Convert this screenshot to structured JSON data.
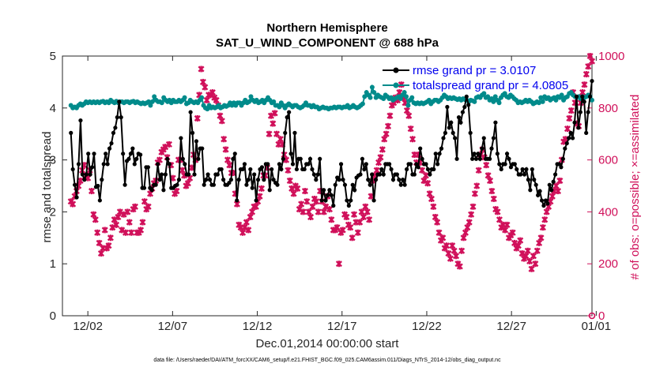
{
  "chart_data": {
    "type": "line",
    "title": "Northern Hemisphere",
    "subtitle": "SAT_U_WIND_COMPONENT @ 688 hPa",
    "xlabel": "Dec.01,2014 00:00:00 start",
    "ylabel": "rmse and totalspread",
    "ylabel_right": "# of obs: o=possible; ×=assimilated",
    "footer": "data file: /Users/raeder/DAI/ATM_forcXX/CAM6_setup/f.e21.FHIST_BGC.f09_025.CAM6assim.011/Diags_NTrS_2014-12/obs_diag_output.nc",
    "xlim": [
      0.5,
      31.75
    ],
    "ylim": [
      0,
      5
    ],
    "ylim_right": [
      0,
      1000
    ],
    "x_ticks": [
      2,
      7,
      12,
      17,
      22,
      27,
      32
    ],
    "x_tick_labels": [
      "12/02",
      "12/07",
      "12/12",
      "12/17",
      "12/22",
      "12/27",
      "01/01"
    ],
    "y_ticks": [
      0,
      1,
      2,
      3,
      4,
      5
    ],
    "y_tick_labels": [
      "0",
      "1",
      "2",
      "3",
      "4",
      "5"
    ],
    "y_ticks_right": [
      0,
      200,
      400,
      600,
      800,
      1000
    ],
    "y_tick_labels_right": [
      "0",
      "200",
      "400",
      "600",
      "800",
      "1000"
    ],
    "colors": {
      "rmse": "#000000",
      "spread": "#008b8b",
      "obs": "#d0105a",
      "right_axis": "#d0105a",
      "legend_text": "#0000ee"
    },
    "series": [
      {
        "name": "rmse grand pr = 3.0107",
        "axis": "left",
        "values": [
          3.52,
          2.82,
          2.52,
          2.28,
          2.92,
          3.76,
          2.72,
          2.62,
          2.72,
          3.12,
          2.72,
          2.86,
          3.12,
          2.48,
          2.5,
          2.22,
          2.62,
          2.92,
          3.12,
          2.92,
          3.22,
          3.32,
          3.52,
          3.62,
          3.82,
          4.12,
          3.82,
          3.12,
          2.52,
          2.98,
          3.02,
          3.12,
          3.22,
          2.92,
          3.02,
          3.12,
          3.1,
          2.46,
          2.46,
          2.86,
          2.86,
          2.46,
          2.42,
          2.52,
          2.52,
          2.92,
          2.62,
          2.72,
          2.42,
          2.72,
          3.02,
          2.92,
          2.46,
          2.46,
          2.5,
          2.52,
          2.62,
          3.42,
          3.02,
          2.92,
          2.72,
          2.72,
          3.92,
          3.52,
          2.72,
          3.36,
          3.02,
          3.22,
          3.22,
          2.52,
          2.62,
          2.72,
          2.62,
          2.52,
          2.52,
          2.72,
          2.72,
          2.82,
          2.82,
          2.62,
          2.52,
          2.52,
          2.56,
          2.62,
          3.02,
          3.12,
          2.22,
          2.62,
          2.82,
          2.82,
          2.92,
          2.52,
          2.62,
          2.82,
          2.46,
          2.72,
          2.22,
          2.62,
          2.82,
          2.86,
          2.62,
          2.92,
          2.92,
          2.42,
          2.82,
          2.62,
          2.56,
          2.52,
          2.92,
          2.82,
          3.02,
          3.52,
          3.82,
          3.92,
          3.12,
          2.92,
          3.52,
          2.82,
          3.02,
          3.02,
          2.82,
          2.82,
          2.92,
          2.92,
          3.02,
          2.82,
          2.72,
          2.62,
          2.72,
          3.02,
          2.22,
          2.42,
          2.22,
          2.32,
          2.42,
          2.32,
          2.12,
          2.52,
          2.66,
          2.62,
          2.92,
          2.62,
          2.52,
          2.22,
          2.12,
          2.22,
          2.52,
          2.42,
          2.66,
          2.7,
          2.72,
          3.02,
          2.82,
          2.92,
          2.62,
          2.52,
          2.72,
          2.22,
          2.62,
          2.72,
          2.72,
          2.82,
          2.72,
          2.92,
          2.92,
          2.92,
          2.82,
          2.62,
          2.72,
          2.72,
          2.62,
          2.52,
          2.62,
          2.52,
          2.82,
          2.92,
          2.92,
          2.72,
          2.72,
          2.92,
          2.86,
          3.22,
          3.02,
          2.92,
          2.92,
          2.82,
          2.72,
          2.82,
          2.82,
          3.12,
          2.92,
          3.12,
          3.22,
          3.42,
          3.52,
          4.02,
          3.62,
          3.72,
          3.52,
          3.42,
          3.02,
          3.82,
          3.72,
          3.92,
          4.02,
          4.22,
          4.06,
          3.52,
          3.02,
          3.12,
          3.02,
          3.12,
          3.02,
          3.22,
          3.42,
          3.02,
          3.02,
          3.02,
          3.22,
          3.42,
          3.72,
          3.12,
          2.92,
          2.82,
          2.92,
          2.92,
          3.12,
          3.02,
          2.86,
          2.92,
          2.92,
          2.82,
          2.72,
          2.72,
          2.82,
          2.72,
          2.82,
          2.62,
          2.42,
          2.82,
          2.62,
          2.52,
          2.32,
          2.4,
          2.22,
          2.12,
          2.22,
          2.16,
          2.52,
          2.42,
          2.58,
          2.72,
          2.92,
          2.92,
          2.86,
          3.02,
          3.22,
          3.32,
          3.42,
          3.52,
          3.42,
          3.72,
          4.22,
          3.62,
          3.92,
          4.22,
          4.12,
          3.52,
          3.92,
          4.22,
          4.52
        ]
      },
      {
        "name": "totalspread grand pr = 4.0805",
        "axis": "left",
        "values": [
          4.05,
          4.0,
          4.02,
          4.0,
          4.05,
          4.08,
          4.05,
          4.08,
          4.12,
          4.1,
          4.12,
          4.1,
          4.12,
          4.1,
          4.12,
          4.1,
          4.12,
          4.13,
          4.1,
          4.12,
          4.1,
          4.15,
          4.12,
          4.1,
          4.13,
          4.1,
          4.12,
          4.12,
          4.1,
          4.12,
          4.12,
          4.1,
          4.12,
          4.13,
          4.1,
          4.12,
          4.1,
          4.08,
          4.1,
          4.08,
          4.1,
          4.12,
          4.05,
          4.12,
          4.22,
          4.15,
          4.12,
          4.12,
          4.1,
          4.2,
          4.15,
          4.12,
          4.15,
          4.1,
          4.15,
          4.12,
          4.12,
          4.15,
          4.12,
          4.15,
          4.2,
          4.08,
          4.1,
          4.15,
          4.12,
          4.1,
          4.12,
          4.1,
          4.15,
          4.2,
          4.05,
          4.0,
          3.98,
          4.05,
          4.0,
          4.02,
          4.0,
          4.02,
          4.05,
          4.0,
          4.02,
          4.05,
          4.03,
          4.05,
          4.1,
          4.05,
          4.1,
          4.05,
          4.1,
          4.1,
          4.05,
          4.1,
          4.15,
          4.1,
          4.12,
          4.22,
          4.15,
          4.12,
          4.15,
          4.1,
          4.12,
          4.15,
          4.1,
          4.15,
          4.2,
          4.15,
          4.1,
          4.12,
          4.05,
          4.05,
          4.02,
          4.1,
          4.05,
          4.0,
          4.05,
          4.08,
          4.05,
          4.02,
          4.05,
          4.05,
          4.02,
          4.0,
          4.02,
          4.05,
          4.1,
          4.05,
          4.05,
          4.02,
          4.05,
          4.02,
          4.02,
          3.98,
          4.0,
          4.02,
          4.0,
          4.0,
          3.98,
          4.0,
          4.0,
          4.02,
          4.0,
          4.02,
          4.02,
          4.0,
          4.02,
          4.02,
          4.05,
          4.0,
          4.02,
          4.05,
          4.02,
          4.0,
          4.02,
          4.05,
          4.08,
          4.22,
          4.3,
          4.25,
          4.2,
          4.4,
          4.3,
          4.2,
          4.25,
          4.22,
          4.2,
          4.18,
          4.25,
          4.22,
          4.18,
          4.2,
          4.15,
          4.18,
          4.2,
          4.22,
          4.18,
          4.25,
          4.3,
          4.22,
          4.05,
          4.15,
          4.2,
          4.1,
          4.08,
          4.1,
          4.08,
          4.1,
          4.08,
          4.1,
          4.12,
          4.15,
          4.08,
          4.12,
          4.15,
          4.15,
          4.12,
          4.15,
          4.2,
          4.25,
          4.22,
          4.18,
          4.2,
          4.18,
          4.2,
          4.18,
          4.16,
          4.18,
          4.15,
          4.18,
          4.16,
          4.15,
          4.12,
          4.15,
          4.14,
          4.12,
          4.2,
          4.22,
          4.2,
          4.25,
          4.28,
          4.2,
          4.22,
          4.15,
          4.18,
          4.12,
          4.22,
          4.15,
          4.1,
          4.2,
          4.25,
          4.28,
          4.22,
          4.2,
          4.25,
          4.22,
          4.18,
          4.15,
          4.1,
          4.12,
          4.1,
          4.12,
          4.15,
          4.12,
          4.15,
          4.12,
          4.08,
          4.1,
          4.12,
          4.1,
          4.2,
          4.12,
          4.22,
          4.18,
          4.2,
          4.15,
          4.18,
          4.2,
          4.15,
          4.22,
          4.2,
          4.25,
          4.15,
          4.2,
          4.22,
          4.28,
          4.3,
          4.25,
          4.22,
          4.2,
          4.22,
          4.18,
          4.22,
          4.2,
          4.22,
          4.25,
          4.22,
          4.15
        ]
      },
      {
        "name": "# of obs assimilated",
        "axis": "right",
        "marker": "x",
        "values": [
          440,
          430,
          460,
          480,
          500,
          520,
          560,
          580,
          540,
          530,
          560,
          480,
          390,
          370,
          320,
          280,
          240,
          260,
          330,
          260,
          270,
          300,
          340,
          370,
          350,
          380,
          400,
          330,
          390,
          320,
          400,
          360,
          320,
          410,
          420,
          320,
          320,
          330,
          360,
          440,
          410,
          420,
          470,
          490,
          510,
          520,
          590,
          600,
          630,
          640,
          650,
          610,
          660,
          580,
          530,
          470,
          480,
          600,
          600,
          560,
          540,
          500,
          510,
          530,
          570,
          620,
          600,
          760,
          850,
          950,
          900,
          880,
          830,
          850,
          850,
          860,
          840,
          830,
          810,
          770,
          750,
          680,
          640,
          600,
          580,
          550,
          550,
          470,
          430,
          350,
          340,
          320,
          340,
          360,
          330,
          380,
          400,
          420,
          420,
          440,
          460,
          490,
          540,
          540,
          570,
          700,
          770,
          740,
          780,
          700,
          660,
          680,
          660,
          620,
          600,
          560,
          520,
          490,
          470,
          500,
          490,
          410,
          430,
          400,
          480,
          440,
          400,
          380,
          420,
          450,
          440,
          400,
          480,
          440,
          400,
          420,
          460,
          410,
          370,
          330,
          330,
          340,
          200,
          320,
          330,
          390,
          380,
          350,
          340,
          300,
          390,
          360,
          320,
          360,
          400,
          380,
          420,
          400,
          370,
          460,
          520,
          540,
          560,
          590,
          610,
          640,
          680,
          700,
          730,
          770,
          810,
          820,
          840,
          830,
          860,
          890,
          840,
          820,
          790,
          770,
          720,
          680,
          620,
          590,
          620,
          590,
          560,
          520,
          540,
          510,
          470,
          450,
          420,
          380,
          360,
          320,
          290,
          300,
          260,
          270,
          240,
          220,
          270,
          250,
          230,
          200,
          190,
          250,
          300,
          320,
          340,
          360,
          390,
          420,
          470,
          500,
          560,
          620,
          640,
          610,
          580,
          540,
          520,
          480,
          450,
          410,
          400,
          370,
          340,
          350,
          330,
          350,
          300,
          310,
          320,
          280,
          260,
          270,
          290,
          240,
          220,
          230,
          250,
          210,
          180,
          230,
          200,
          250,
          280,
          300,
          340,
          370,
          400,
          420,
          440,
          460,
          480,
          500,
          480,
          520,
          600,
          670,
          680,
          720,
          760,
          790,
          860,
          820,
          740,
          730,
          820,
          860,
          890,
          930,
          960,
          1000,
          980
        ]
      }
    ],
    "legend": [
      "rmse grand pr = 3.0107",
      "totalspread grand pr = 4.0805"
    ],
    "legend_position": "top-right",
    "grid": false
  }
}
